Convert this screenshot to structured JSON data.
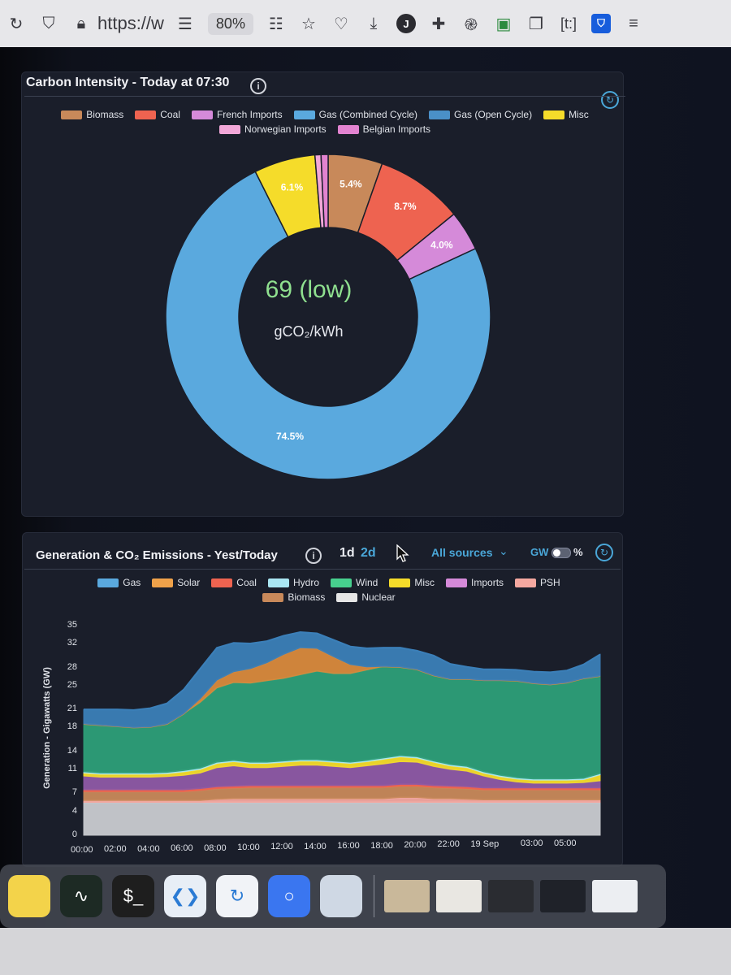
{
  "browser": {
    "url": "https://w",
    "zoom": "80%",
    "profile_initial": "J",
    "container_label": "[t:]",
    "icons": [
      "reload-icon",
      "shield-icon",
      "lock-icon",
      "reader-view-icon",
      "extensions-grid-icon",
      "star-icon",
      "pocket-icon",
      "download-icon",
      "profile-icon",
      "add-extension-icon",
      "fingerprint-icon",
      "save-icon",
      "puzzle-icon",
      "container-icon",
      "bitwarden-icon",
      "menu-icon"
    ]
  },
  "carbon_card": {
    "title": "Carbon Intensity - Today at 07:30",
    "center_value": "69 (low)",
    "center_unit": "gCO₂/kWh",
    "legend": [
      {
        "label": "Biomass",
        "color": "#c8895a"
      },
      {
        "label": "Coal",
        "color": "#ee6350"
      },
      {
        "label": "French Imports",
        "color": "#d58ad9"
      },
      {
        "label": "Gas (Combined Cycle)",
        "color": "#5aa9de"
      },
      {
        "label": "Gas (Open Cycle)",
        "color": "#4a90c8"
      },
      {
        "label": "Misc",
        "color": "#f5dc2a"
      },
      {
        "label": "Norwegian Imports",
        "color": "#f2a7d8"
      },
      {
        "label": "Belgian Imports",
        "color": "#e283d0"
      }
    ]
  },
  "generation_card": {
    "title": "Generation & CO₂ Emissions - Yest/Today",
    "tabs": [
      "1d",
      "2d"
    ],
    "active_tab": "2d",
    "source_select": "All sources",
    "unit_left": "GW",
    "unit_right": "%",
    "legend": [
      {
        "label": "Gas",
        "color": "#5aa9de"
      },
      {
        "label": "Solar",
        "color": "#f0a24a"
      },
      {
        "label": "Coal",
        "color": "#ee6350"
      },
      {
        "label": "Hydro",
        "color": "#a9e6f2"
      },
      {
        "label": "Wind",
        "color": "#47d08e"
      },
      {
        "label": "Misc",
        "color": "#f5dc2a"
      },
      {
        "label": "Imports",
        "color": "#d58ad9"
      },
      {
        "label": "PSH",
        "color": "#f5a8a0"
      },
      {
        "label": "Biomass",
        "color": "#c8895a"
      },
      {
        "label": "Nuclear",
        "color": "#e6e6e6"
      }
    ]
  },
  "chart_data": [
    {
      "type": "pie",
      "title": "Carbon Intensity - Today at 07:30",
      "center_label": "69 (low)",
      "unit": "gCO₂/kWh",
      "slices": [
        {
          "name": "Biomass",
          "value": 5.4,
          "label": "5.4%",
          "color": "#c8895a"
        },
        {
          "name": "Coal",
          "value": 8.7,
          "label": "8.7%",
          "color": "#ee6350"
        },
        {
          "name": "French Imports",
          "value": 4.0,
          "label": "4.0%",
          "color": "#d58ad9"
        },
        {
          "name": "Gas (Combined Cycle)",
          "value": 74.5,
          "label": "74.5%",
          "color": "#5aa9de"
        },
        {
          "name": "Misc",
          "value": 6.1,
          "label": "6.1%",
          "color": "#f5dc2a"
        },
        {
          "name": "Norwegian Imports",
          "value": 0.6,
          "label": "",
          "color": "#f2a7d8"
        },
        {
          "name": "Belgian Imports",
          "value": 0.7,
          "label": "",
          "color": "#e283d0"
        }
      ],
      "legend_position": "top"
    },
    {
      "type": "area",
      "title": "Generation & CO₂ Emissions - Yest/Today",
      "ylabel": "Generation - Gigawatts (GW)",
      "ylim": [
        0,
        35
      ],
      "yticks": [
        0,
        4,
        7,
        11,
        14,
        18,
        21,
        25,
        28,
        32,
        35
      ],
      "xticks": [
        "00:00",
        "02:00",
        "04:00",
        "06:00",
        "08:00",
        "10:00",
        "12:00",
        "14:00",
        "16:00",
        "18:00",
        "20:00",
        "22:00",
        "19 Sep",
        "03:00",
        "05:00"
      ],
      "x_hours": [
        0,
        1,
        2,
        3,
        4,
        5,
        6,
        7,
        8,
        9,
        10,
        11,
        12,
        13,
        14,
        15,
        16,
        17,
        18,
        19,
        20,
        21,
        22,
        23,
        24,
        25,
        26,
        27,
        28,
        29,
        30,
        31
      ],
      "stacked": true,
      "series": [
        {
          "name": "Nuclear",
          "color": "#c9cbd0",
          "values": [
            5.5,
            5.5,
            5.5,
            5.5,
            5.5,
            5.5,
            5.5,
            5.5,
            5.5,
            5.5,
            5.5,
            5.5,
            5.5,
            5.5,
            5.5,
            5.5,
            5.5,
            5.5,
            5.5,
            5.5,
            5.5,
            5.5,
            5.5,
            5.5,
            5.5,
            5.5,
            5.5,
            5.5,
            5.5,
            5.5,
            5.5,
            5.5
          ]
        },
        {
          "name": "PSH",
          "color": "#f5a8a0",
          "values": [
            0.3,
            0.3,
            0.3,
            0.3,
            0.3,
            0.3,
            0.3,
            0.3,
            0.5,
            0.6,
            0.6,
            0.6,
            0.6,
            0.6,
            0.6,
            0.6,
            0.6,
            0.6,
            0.6,
            0.8,
            0.8,
            0.6,
            0.6,
            0.5,
            0.4,
            0.4,
            0.4,
            0.4,
            0.4,
            0.4,
            0.4,
            0.4
          ]
        },
        {
          "name": "Biomass",
          "color": "#c8895a",
          "values": [
            1.5,
            1.5,
            1.5,
            1.5,
            1.5,
            1.5,
            1.5,
            1.7,
            1.8,
            1.8,
            1.9,
            1.9,
            1.9,
            1.9,
            1.9,
            1.9,
            1.9,
            1.9,
            1.9,
            1.9,
            1.9,
            1.9,
            1.8,
            1.8,
            1.7,
            1.7,
            1.7,
            1.7,
            1.7,
            1.7,
            1.7,
            1.7
          ]
        },
        {
          "name": "Coal",
          "color": "#ee6350",
          "values": [
            0.3,
            0.3,
            0.3,
            0.3,
            0.3,
            0.3,
            0.3,
            0.3,
            0.3,
            0.3,
            0.3,
            0.3,
            0.3,
            0.3,
            0.3,
            0.3,
            0.3,
            0.3,
            0.3,
            0.3,
            0.3,
            0.3,
            0.3,
            0.3,
            0.3,
            0.3,
            0.3,
            0.3,
            0.3,
            0.3,
            0.3,
            0.3
          ]
        },
        {
          "name": "Imports",
          "color": "#8e5aa6",
          "values": [
            2.3,
            2.1,
            2.1,
            2.1,
            2.1,
            2.2,
            2.4,
            2.6,
            3.2,
            3.4,
            3.0,
            3.0,
            3.2,
            3.4,
            3.4,
            3.2,
            3.0,
            3.3,
            3.6,
            3.8,
            3.7,
            3.2,
            2.8,
            2.6,
            2.0,
            1.4,
            1.0,
            0.8,
            0.8,
            0.8,
            0.9,
            1.2
          ]
        },
        {
          "name": "Misc",
          "color": "#f5dc2a",
          "values": [
            0.5,
            0.5,
            0.5,
            0.5,
            0.5,
            0.5,
            0.6,
            0.6,
            0.7,
            0.7,
            0.7,
            0.7,
            0.7,
            0.7,
            0.7,
            0.7,
            0.7,
            0.7,
            0.8,
            0.8,
            0.7,
            0.7,
            0.6,
            0.6,
            0.5,
            0.5,
            0.5,
            0.5,
            0.5,
            0.5,
            0.5,
            1.0
          ]
        },
        {
          "name": "Hydro",
          "color": "#a9e6f2",
          "values": [
            0.2,
            0.2,
            0.2,
            0.2,
            0.2,
            0.2,
            0.2,
            0.2,
            0.2,
            0.2,
            0.2,
            0.2,
            0.2,
            0.2,
            0.2,
            0.2,
            0.2,
            0.2,
            0.2,
            0.2,
            0.2,
            0.2,
            0.2,
            0.2,
            0.2,
            0.2,
            0.2,
            0.2,
            0.2,
            0.2,
            0.2,
            0.2
          ]
        },
        {
          "name": "Wind",
          "color": "#2e9f78",
          "values": [
            8.0,
            8.0,
            7.8,
            7.6,
            7.7,
            8.1,
            9.5,
            11.0,
            12.4,
            13.0,
            13.2,
            13.6,
            13.8,
            14.2,
            14.8,
            14.6,
            14.8,
            15.1,
            15.3,
            14.8,
            14.6,
            14.3,
            14.3,
            14.6,
            15.3,
            15.9,
            16.2,
            16.0,
            15.8,
            16.1,
            16.7,
            16.3
          ]
        },
        {
          "name": "Solar",
          "color": "#d98a3c",
          "values": [
            0,
            0,
            0,
            0,
            0,
            0,
            0,
            0.6,
            1.3,
            1.8,
            2.4,
            3.0,
            4.0,
            4.5,
            3.8,
            2.8,
            1.5,
            0.5,
            0,
            0,
            0,
            0,
            0,
            0,
            0,
            0,
            0,
            0,
            0,
            0,
            0,
            0
          ]
        },
        {
          "name": "Gas",
          "color": "#3b7fb8",
          "values": [
            2.4,
            2.6,
            2.8,
            2.9,
            3.1,
            3.4,
            4.0,
            5.0,
            5.4,
            4.8,
            4.2,
            3.6,
            3.1,
            2.6,
            2.5,
            2.8,
            3.0,
            3.1,
            3.1,
            3.2,
            3.1,
            3.3,
            2.5,
            2.0,
            1.8,
            1.8,
            1.8,
            1.9,
            2.0,
            2.0,
            2.3,
            3.6
          ]
        }
      ]
    }
  ],
  "dock": {
    "apps": [
      {
        "name": "stickies-app-icon",
        "color": "#f3d34a",
        "glyph": ""
      },
      {
        "name": "activity-monitor-app-icon",
        "color": "#1d2a24",
        "glyph": "∿"
      },
      {
        "name": "terminal-app-icon",
        "color": "#1e1e1e",
        "glyph": "$_"
      },
      {
        "name": "vscode-app-icon",
        "color": "#e8eef6",
        "glyph": "❮❯"
      },
      {
        "name": "arc-browser-app-icon",
        "color": "#f1f3f7",
        "glyph": "↻"
      },
      {
        "name": "signal-app-icon",
        "color": "#3a76f0",
        "glyph": "○"
      },
      {
        "name": "preview-app-icon",
        "color": "#cfd8e4",
        "glyph": ""
      }
    ],
    "thumbnails": [
      {
        "name": "window-thumbnail-documents",
        "color": "#c9b89a"
      },
      {
        "name": "window-thumbnail-notes",
        "color": "#e9e7e2"
      },
      {
        "name": "window-thumbnail-terminal",
        "color": "#2a2c31"
      },
      {
        "name": "window-thumbnail-vscode",
        "color": "#1f2229"
      },
      {
        "name": "window-thumbnail-firefox",
        "color": "#eceef2"
      }
    ]
  }
}
